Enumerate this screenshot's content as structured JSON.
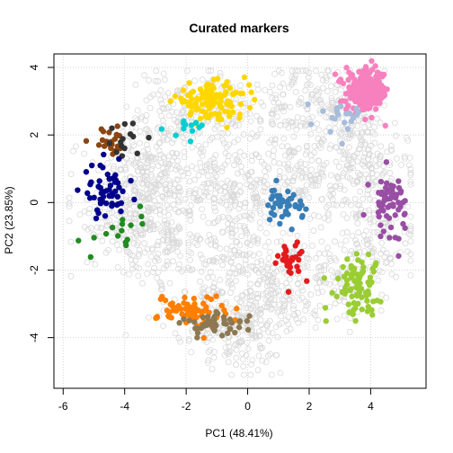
{
  "chart_data": {
    "type": "scatter",
    "title": "Curated markers",
    "xlabel": "PC1 (48.41%)",
    "ylabel": "PC2 (23.85%)",
    "xlim": [
      -6.3,
      5.8
    ],
    "ylim": [
      -5.5,
      4.4
    ],
    "xticks": [
      -6,
      -4,
      -2,
      0,
      2,
      4
    ],
    "yticks": [
      -4,
      -2,
      0,
      2,
      4
    ],
    "grid": true,
    "background_points": {
      "color": "#d9d9d9",
      "count": 2200,
      "style": "open-circle"
    },
    "clusters": [
      {
        "color": "#FFD700",
        "center": [
          -1.2,
          3.0
        ],
        "spread": [
          0.6,
          0.25
        ],
        "count": 120
      },
      {
        "color": "#F781BF",
        "center": [
          3.9,
          3.3
        ],
        "spread": [
          0.35,
          0.3
        ],
        "count": 230
      },
      {
        "color": "#A6BDDB",
        "center": [
          3.0,
          2.6
        ],
        "spread": [
          0.35,
          0.25
        ],
        "count": 20
      },
      {
        "color": "#8B4513",
        "center": [
          -4.5,
          1.8
        ],
        "spread": [
          0.3,
          0.18
        ],
        "count": 20
      },
      {
        "color": "#333333",
        "center": [
          -4.0,
          1.9
        ],
        "spread": [
          0.6,
          0.3
        ],
        "count": 14
      },
      {
        "color": "#00CED1",
        "center": [
          -2.0,
          2.2
        ],
        "spread": [
          0.35,
          0.15
        ],
        "count": 12
      },
      {
        "color": "#00008B",
        "center": [
          -4.6,
          0.3
        ],
        "spread": [
          0.35,
          0.4
        ],
        "count": 55
      },
      {
        "color": "#228B22",
        "center": [
          -4.0,
          -0.8
        ],
        "spread": [
          0.45,
          0.35
        ],
        "count": 16
      },
      {
        "color": "#377EB8",
        "center": [
          1.2,
          -0.1
        ],
        "spread": [
          0.3,
          0.25
        ],
        "count": 45
      },
      {
        "color": "#984EA3",
        "center": [
          4.6,
          0.0
        ],
        "spread": [
          0.3,
          0.45
        ],
        "count": 60
      },
      {
        "color": "#E41A1C",
        "center": [
          1.4,
          -1.7
        ],
        "spread": [
          0.2,
          0.3
        ],
        "count": 30
      },
      {
        "color": "#9ACD32",
        "center": [
          3.5,
          -2.4
        ],
        "spread": [
          0.4,
          0.45
        ],
        "count": 80
      },
      {
        "color": "#FF7F00",
        "center": [
          -1.8,
          -3.2
        ],
        "spread": [
          0.55,
          0.25
        ],
        "count": 70
      },
      {
        "color": "#8C7853",
        "center": [
          -1.0,
          -3.6
        ],
        "spread": [
          0.5,
          0.15
        ],
        "count": 50
      }
    ]
  }
}
